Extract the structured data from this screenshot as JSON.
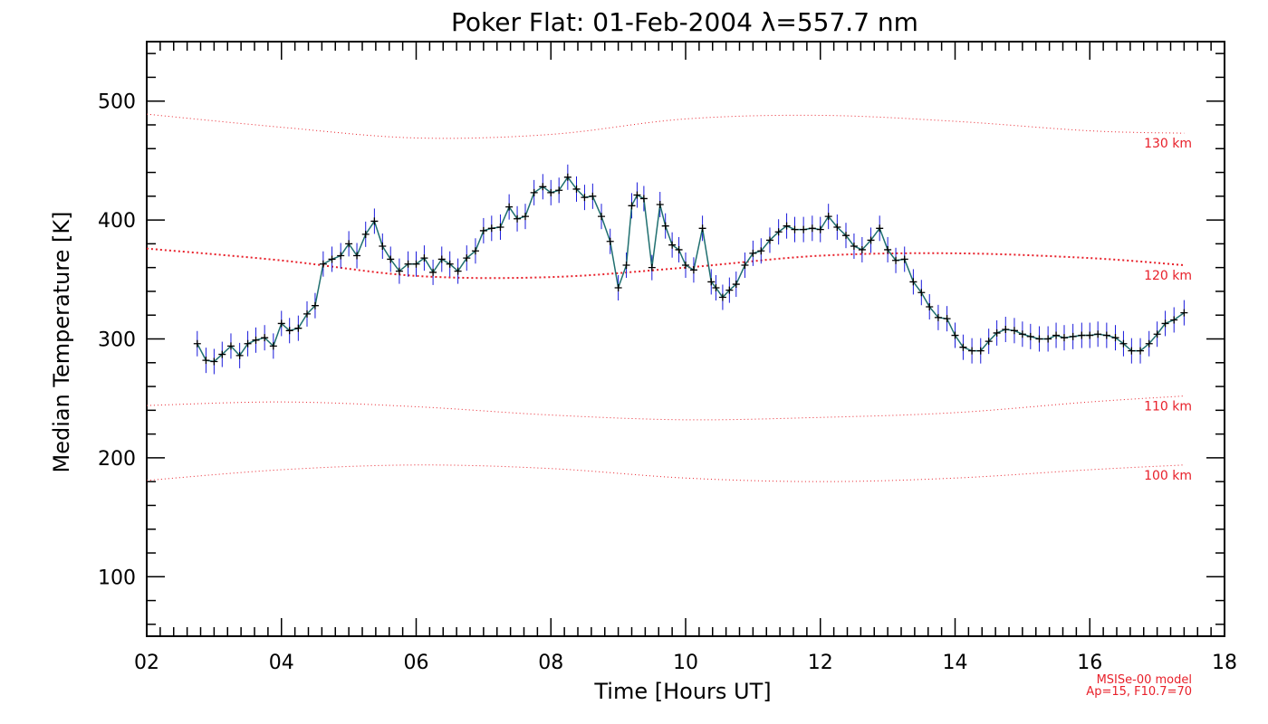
{
  "chart_data": {
    "type": "line",
    "title": "Poker Flat: 01-Feb-2004 λ=557.7 nm",
    "xlabel": "Time [Hours UT]",
    "ylabel": "Median Temperature [K]",
    "xlim": [
      2,
      18
    ],
    "ylim": [
      50,
      550
    ],
    "x_ticks": [
      2,
      4,
      6,
      8,
      10,
      12,
      14,
      16,
      18
    ],
    "x_tick_labels": [
      "02",
      "04",
      "06",
      "08",
      "10",
      "12",
      "14",
      "16",
      "18"
    ],
    "y_ticks": [
      100,
      200,
      300,
      400,
      500
    ],
    "y_tick_labels": [
      "100",
      "200",
      "300",
      "400",
      "500"
    ],
    "grid": false,
    "colors": {
      "observed_line": "#1f6f6f",
      "error_bar": "#1a1adb",
      "marker": "#000000",
      "model": "#e8202a",
      "axis": "#000000"
    },
    "observed": {
      "name": "Median Temperature",
      "x": [
        2.75,
        2.88,
        3.0,
        3.12,
        3.25,
        3.38,
        3.5,
        3.62,
        3.75,
        3.88,
        4.0,
        4.12,
        4.25,
        4.38,
        4.5,
        4.62,
        4.75,
        4.88,
        5.0,
        5.12,
        5.25,
        5.38,
        5.5,
        5.62,
        5.75,
        5.88,
        6.0,
        6.12,
        6.25,
        6.38,
        6.5,
        6.62,
        6.75,
        6.88,
        7.0,
        7.12,
        7.25,
        7.38,
        7.5,
        7.62,
        7.75,
        7.88,
        8.0,
        8.12,
        8.25,
        8.38,
        8.5,
        8.62,
        8.75,
        8.88,
        9.0,
        9.12,
        9.2,
        9.28,
        9.38,
        9.5,
        9.62,
        9.7,
        9.8,
        9.9,
        10.0,
        10.12,
        10.25,
        10.38,
        10.45,
        10.55,
        10.65,
        10.75,
        10.88,
        11.0,
        11.12,
        11.25,
        11.38,
        11.5,
        11.62,
        11.75,
        11.88,
        12.0,
        12.12,
        12.25,
        12.38,
        12.5,
        12.62,
        12.75,
        12.88,
        13.0,
        13.12,
        13.25,
        13.38,
        13.5,
        13.62,
        13.75,
        13.88,
        14.0,
        14.12,
        14.25,
        14.38,
        14.5,
        14.62,
        14.75,
        14.88,
        15.0,
        15.12,
        15.25,
        15.38,
        15.5,
        15.62,
        15.75,
        15.88,
        16.0,
        16.12,
        16.25,
        16.38,
        16.5,
        16.62,
        16.75,
        16.88,
        17.0,
        17.12,
        17.25,
        17.4
      ],
      "y": [
        296,
        282,
        281,
        287,
        294,
        286,
        296,
        299,
        301,
        294,
        313,
        307,
        309,
        321,
        328,
        363,
        367,
        370,
        380,
        370,
        388,
        399,
        378,
        367,
        357,
        363,
        363,
        368,
        356,
        367,
        363,
        357,
        368,
        374,
        391,
        393,
        394,
        411,
        401,
        403,
        423,
        428,
        423,
        425,
        436,
        426,
        419,
        420,
        403,
        382,
        343,
        362,
        412,
        421,
        418,
        360,
        413,
        395,
        379,
        375,
        362,
        358,
        393,
        348,
        343,
        335,
        341,
        346,
        362,
        372,
        374,
        383,
        390,
        395,
        392,
        392,
        393,
        392,
        403,
        394,
        387,
        378,
        375,
        383,
        393,
        375,
        366,
        367,
        348,
        339,
        327,
        318,
        317,
        303,
        293,
        290,
        290,
        298,
        305,
        308,
        307,
        304,
        302,
        300,
        300,
        303,
        301,
        302,
        303,
        303,
        304,
        303,
        301,
        296,
        290,
        290,
        296,
        304,
        313,
        316,
        322
      ]
    },
    "model_curves": [
      {
        "name": "130 km",
        "x": [
          2,
          4,
          6,
          8,
          10,
          12,
          14,
          16,
          17.4
        ],
        "y": [
          489,
          478,
          469,
          472,
          485,
          488,
          483,
          475,
          473
        ]
      },
      {
        "name": "120 km",
        "x": [
          2,
          4,
          6,
          8,
          10,
          12,
          14,
          16,
          17.4
        ],
        "y": [
          376,
          366,
          353,
          352,
          360,
          370,
          372,
          368,
          362
        ]
      },
      {
        "name": "110 km",
        "x": [
          2,
          4,
          6,
          8,
          10,
          12,
          14,
          16,
          17.4
        ],
        "y": [
          244,
          247,
          243,
          236,
          232,
          234,
          238,
          247,
          252
        ]
      },
      {
        "name": "100 km",
        "x": [
          2,
          4,
          6,
          8,
          10,
          12,
          14,
          16,
          17.4
        ],
        "y": [
          181,
          190,
          194,
          191,
          183,
          180,
          183,
          190,
          194
        ]
      }
    ],
    "annotation": {
      "line1": "MSISe-00 model",
      "line2": "Ap=15, F10.7=70"
    }
  }
}
